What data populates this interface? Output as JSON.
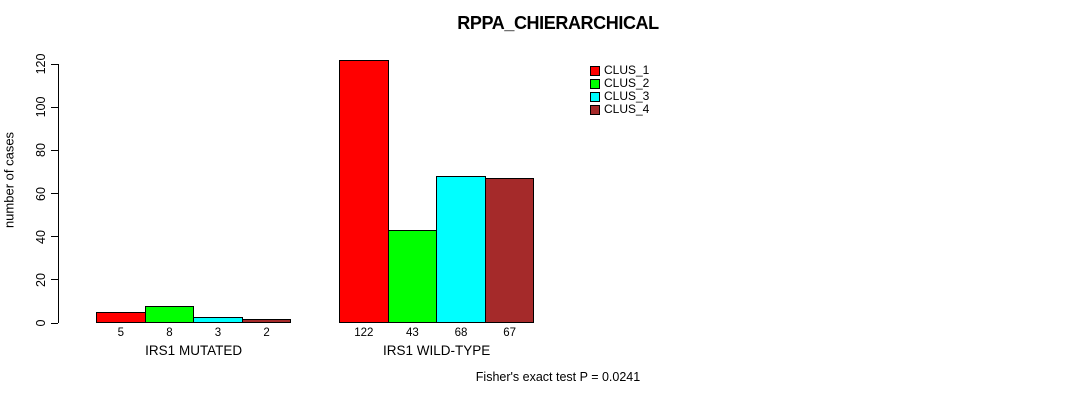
{
  "chart_data": {
    "type": "bar",
    "title": "RPPA_CHIERARCHICAL",
    "ylabel": "number of cases",
    "xlabel": "",
    "caption": "Fisher's exact test P = 0.0241",
    "ylim": [
      0,
      120
    ],
    "yticks": [
      0,
      20,
      40,
      60,
      80,
      100,
      120
    ],
    "grid": false,
    "legend_position": "top-right",
    "bar_value_labels_shown": true,
    "categories": [
      "IRS1 MUTATED",
      "IRS1 WILD-TYPE"
    ],
    "series": [
      {
        "name": "CLUS_1",
        "color": "#ff0000",
        "values": [
          5,
          122
        ]
      },
      {
        "name": "CLUS_2",
        "color": "#00ff00",
        "values": [
          8,
          43
        ]
      },
      {
        "name": "CLUS_3",
        "color": "#00ffff",
        "values": [
          3,
          68
        ]
      },
      {
        "name": "CLUS_4",
        "color": "#a52a2a",
        "values": [
          2,
          67
        ]
      }
    ],
    "colors": {
      "axis": "#000000",
      "text": "#000000",
      "background": "#ffffff"
    }
  }
}
